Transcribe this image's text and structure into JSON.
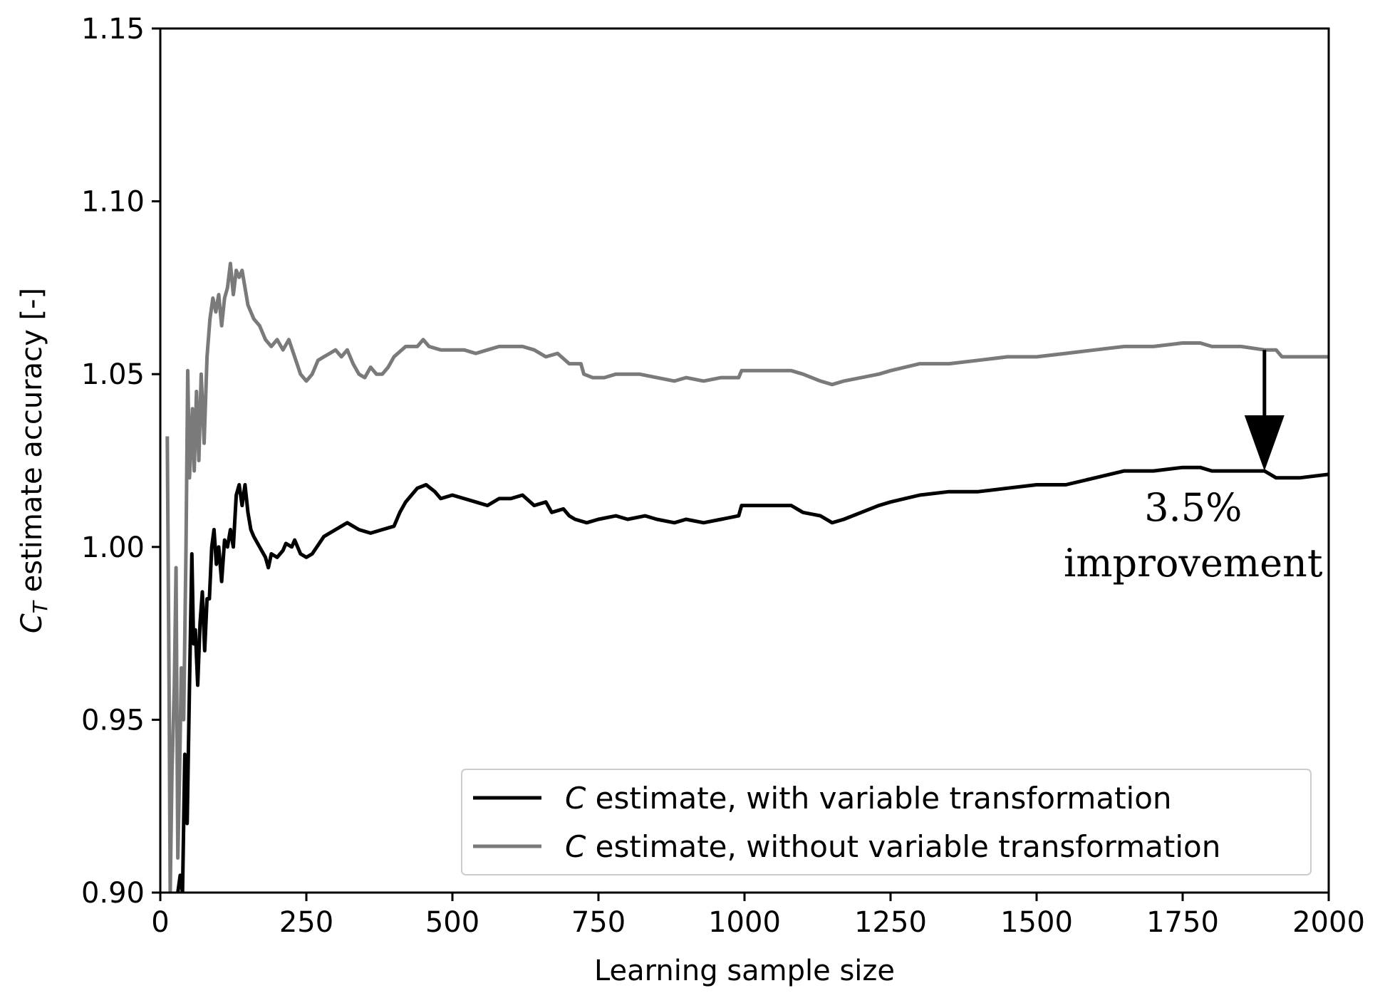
{
  "chart_data": {
    "type": "line",
    "xlabel": "Learning sample size",
    "ylabel": {
      "base": "C",
      "sub": "T",
      "rest": " estimate accuracy [-]"
    },
    "xlim": [
      0,
      2000
    ],
    "ylim": [
      0.9,
      1.15
    ],
    "xticks": [
      {
        "value": 0,
        "label": "0"
      },
      {
        "value": 250,
        "label": "250"
      },
      {
        "value": 500,
        "label": "500"
      },
      {
        "value": 750,
        "label": "750"
      },
      {
        "value": 1000,
        "label": "1000"
      },
      {
        "value": 1250,
        "label": "1250"
      },
      {
        "value": 1500,
        "label": "1500"
      },
      {
        "value": 1750,
        "label": "1750"
      },
      {
        "value": 2000,
        "label": "2000"
      }
    ],
    "yticks": [
      {
        "value": 0.9,
        "label": "0.90"
      },
      {
        "value": 0.95,
        "label": "0.95"
      },
      {
        "value": 1.0,
        "label": "1.00"
      },
      {
        "value": 1.05,
        "label": "1.05"
      },
      {
        "value": 1.1,
        "label": "1.10"
      },
      {
        "value": 1.15,
        "label": "1.15"
      }
    ],
    "grid": false,
    "legend_position": "lower-right",
    "series": [
      {
        "key": "with",
        "legend_italic": "C",
        "legend_rest": " estimate, with variable transformation",
        "color": "#000000",
        "points": [
          [
            30,
            0.9
          ],
          [
            34,
            0.905
          ],
          [
            38,
            0.9
          ],
          [
            42,
            0.94
          ],
          [
            46,
            0.92
          ],
          [
            50,
            0.96
          ],
          [
            54,
            0.998
          ],
          [
            57,
            0.972
          ],
          [
            60,
            0.976
          ],
          [
            64,
            0.96
          ],
          [
            68,
            0.978
          ],
          [
            72,
            0.987
          ],
          [
            76,
            0.97
          ],
          [
            80,
            0.985
          ],
          [
            84,
            0.985
          ],
          [
            88,
            1.0
          ],
          [
            92,
            1.005
          ],
          [
            96,
            0.995
          ],
          [
            100,
            1.0
          ],
          [
            105,
            0.99
          ],
          [
            110,
            1.002
          ],
          [
            115,
            1.0
          ],
          [
            120,
            1.005
          ],
          [
            125,
            1.0
          ],
          [
            130,
            1.015
          ],
          [
            135,
            1.018
          ],
          [
            140,
            1.012
          ],
          [
            145,
            1.018
          ],
          [
            150,
            1.01
          ],
          [
            155,
            1.005
          ],
          [
            160,
            1.003
          ],
          [
            170,
            1.0
          ],
          [
            180,
            0.997
          ],
          [
            185,
            0.994
          ],
          [
            190,
            0.998
          ],
          [
            200,
            0.997
          ],
          [
            210,
            0.999
          ],
          [
            215,
            1.001
          ],
          [
            225,
            1.0
          ],
          [
            230,
            1.002
          ],
          [
            240,
            0.998
          ],
          [
            250,
            0.997
          ],
          [
            260,
            0.998
          ],
          [
            280,
            1.003
          ],
          [
            300,
            1.005
          ],
          [
            320,
            1.007
          ],
          [
            340,
            1.005
          ],
          [
            360,
            1.004
          ],
          [
            380,
            1.005
          ],
          [
            400,
            1.006
          ],
          [
            410,
            1.01
          ],
          [
            420,
            1.013
          ],
          [
            440,
            1.017
          ],
          [
            455,
            1.018
          ],
          [
            470,
            1.016
          ],
          [
            480,
            1.014
          ],
          [
            500,
            1.015
          ],
          [
            520,
            1.014
          ],
          [
            540,
            1.013
          ],
          [
            560,
            1.012
          ],
          [
            580,
            1.014
          ],
          [
            600,
            1.014
          ],
          [
            620,
            1.015
          ],
          [
            640,
            1.012
          ],
          [
            660,
            1.013
          ],
          [
            670,
            1.01
          ],
          [
            690,
            1.011
          ],
          [
            700,
            1.009
          ],
          [
            710,
            1.008
          ],
          [
            730,
            1.007
          ],
          [
            750,
            1.008
          ],
          [
            780,
            1.009
          ],
          [
            800,
            1.008
          ],
          [
            830,
            1.009
          ],
          [
            850,
            1.008
          ],
          [
            880,
            1.007
          ],
          [
            900,
            1.008
          ],
          [
            930,
            1.007
          ],
          [
            960,
            1.008
          ],
          [
            990,
            1.009
          ],
          [
            995,
            1.012
          ],
          [
            1000,
            1.012
          ],
          [
            1050,
            1.012
          ],
          [
            1080,
            1.012
          ],
          [
            1100,
            1.01
          ],
          [
            1130,
            1.009
          ],
          [
            1150,
            1.007
          ],
          [
            1170,
            1.008
          ],
          [
            1200,
            1.01
          ],
          [
            1230,
            1.012
          ],
          [
            1250,
            1.013
          ],
          [
            1300,
            1.015
          ],
          [
            1350,
            1.016
          ],
          [
            1400,
            1.016
          ],
          [
            1450,
            1.017
          ],
          [
            1500,
            1.018
          ],
          [
            1550,
            1.018
          ],
          [
            1600,
            1.02
          ],
          [
            1650,
            1.022
          ],
          [
            1700,
            1.022
          ],
          [
            1750,
            1.023
          ],
          [
            1780,
            1.023
          ],
          [
            1800,
            1.022
          ],
          [
            1850,
            1.022
          ],
          [
            1890,
            1.022
          ],
          [
            1910,
            1.02
          ],
          [
            1950,
            1.02
          ],
          [
            2000,
            1.021
          ]
        ]
      },
      {
        "key": "without",
        "legend_italic": "C",
        "legend_rest": " estimate, without variable transformation",
        "color": "#7a7a7a",
        "points": [
          [
            12,
            1.032
          ],
          [
            15,
            0.96
          ],
          [
            17,
            0.9
          ],
          [
            20,
            0.935
          ],
          [
            24,
            0.96
          ],
          [
            27,
            0.994
          ],
          [
            30,
            0.91
          ],
          [
            33,
            0.935
          ],
          [
            36,
            0.965
          ],
          [
            40,
            0.95
          ],
          [
            44,
            1.0
          ],
          [
            47,
            1.051
          ],
          [
            50,
            1.02
          ],
          [
            55,
            1.04
          ],
          [
            58,
            1.022
          ],
          [
            62,
            1.045
          ],
          [
            66,
            1.025
          ],
          [
            70,
            1.05
          ],
          [
            75,
            1.03
          ],
          [
            80,
            1.055
          ],
          [
            85,
            1.066
          ],
          [
            90,
            1.072
          ],
          [
            95,
            1.068
          ],
          [
            100,
            1.073
          ],
          [
            105,
            1.064
          ],
          [
            110,
            1.072
          ],
          [
            115,
            1.075
          ],
          [
            120,
            1.082
          ],
          [
            125,
            1.073
          ],
          [
            130,
            1.08
          ],
          [
            135,
            1.078
          ],
          [
            140,
            1.08
          ],
          [
            145,
            1.075
          ],
          [
            150,
            1.07
          ],
          [
            160,
            1.066
          ],
          [
            170,
            1.064
          ],
          [
            180,
            1.06
          ],
          [
            190,
            1.058
          ],
          [
            200,
            1.06
          ],
          [
            210,
            1.057
          ],
          [
            220,
            1.06
          ],
          [
            230,
            1.055
          ],
          [
            240,
            1.05
          ],
          [
            250,
            1.048
          ],
          [
            260,
            1.05
          ],
          [
            270,
            1.054
          ],
          [
            280,
            1.055
          ],
          [
            290,
            1.056
          ],
          [
            300,
            1.057
          ],
          [
            310,
            1.055
          ],
          [
            320,
            1.057
          ],
          [
            330,
            1.053
          ],
          [
            340,
            1.05
          ],
          [
            350,
            1.049
          ],
          [
            360,
            1.052
          ],
          [
            370,
            1.05
          ],
          [
            380,
            1.05
          ],
          [
            390,
            1.052
          ],
          [
            400,
            1.055
          ],
          [
            420,
            1.058
          ],
          [
            440,
            1.058
          ],
          [
            450,
            1.06
          ],
          [
            460,
            1.058
          ],
          [
            480,
            1.057
          ],
          [
            500,
            1.057
          ],
          [
            520,
            1.057
          ],
          [
            540,
            1.056
          ],
          [
            560,
            1.057
          ],
          [
            580,
            1.058
          ],
          [
            600,
            1.058
          ],
          [
            620,
            1.058
          ],
          [
            640,
            1.057
          ],
          [
            660,
            1.055
          ],
          [
            680,
            1.056
          ],
          [
            700,
            1.053
          ],
          [
            720,
            1.053
          ],
          [
            725,
            1.05
          ],
          [
            740,
            1.049
          ],
          [
            760,
            1.049
          ],
          [
            780,
            1.05
          ],
          [
            800,
            1.05
          ],
          [
            820,
            1.05
          ],
          [
            850,
            1.049
          ],
          [
            880,
            1.048
          ],
          [
            900,
            1.049
          ],
          [
            930,
            1.048
          ],
          [
            960,
            1.049
          ],
          [
            990,
            1.049
          ],
          [
            995,
            1.051
          ],
          [
            1000,
            1.051
          ],
          [
            1050,
            1.051
          ],
          [
            1080,
            1.051
          ],
          [
            1100,
            1.05
          ],
          [
            1130,
            1.048
          ],
          [
            1150,
            1.047
          ],
          [
            1170,
            1.048
          ],
          [
            1200,
            1.049
          ],
          [
            1230,
            1.05
          ],
          [
            1250,
            1.051
          ],
          [
            1300,
            1.053
          ],
          [
            1350,
            1.053
          ],
          [
            1400,
            1.054
          ],
          [
            1450,
            1.055
          ],
          [
            1500,
            1.055
          ],
          [
            1550,
            1.056
          ],
          [
            1600,
            1.057
          ],
          [
            1650,
            1.058
          ],
          [
            1700,
            1.058
          ],
          [
            1750,
            1.059
          ],
          [
            1780,
            1.059
          ],
          [
            1800,
            1.058
          ],
          [
            1850,
            1.058
          ],
          [
            1890,
            1.057
          ],
          [
            1910,
            1.057
          ],
          [
            1920,
            1.055
          ],
          [
            1950,
            1.055
          ],
          [
            2000,
            1.055
          ]
        ]
      }
    ],
    "annotation": {
      "arrow_from": [
        1890,
        1.057
      ],
      "arrow_to": [
        1890,
        1.022
      ],
      "line1": "3.5%",
      "line2": "improvement"
    }
  }
}
